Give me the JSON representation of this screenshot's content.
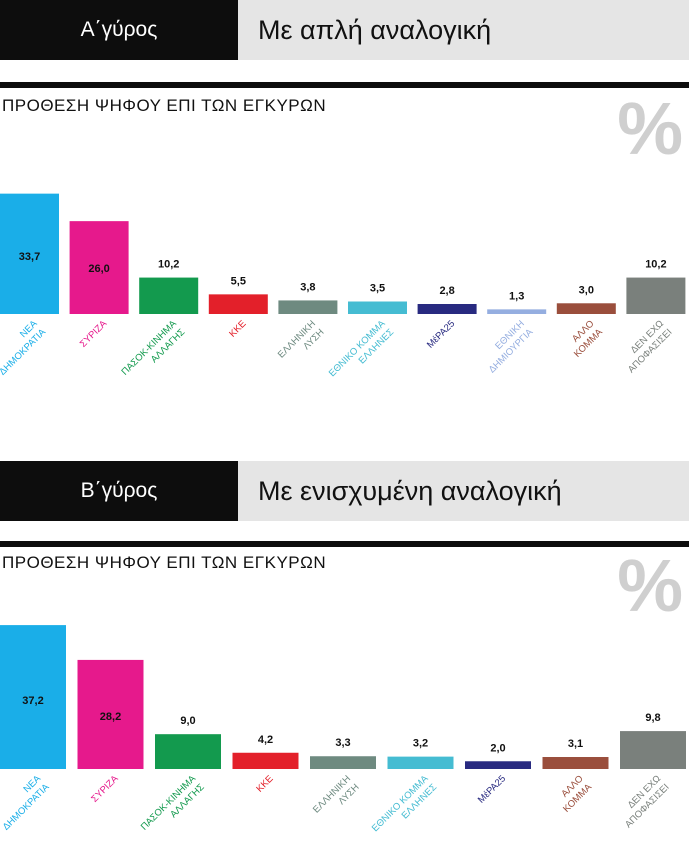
{
  "sections": [
    {
      "round_label": "Α΄γύρος",
      "method_label": "Με απλή αναλογική",
      "subtitle": "ΠΡΟΘΕΣΗ ΨΗΦΟΥ ΕΠΙ ΤΩΝ ΕΓΚΥΡΩΝ",
      "percent_symbol": "%"
    },
    {
      "round_label": "Β΄γύρος",
      "method_label": "Με ενισχυμένη αναλογική",
      "subtitle": "ΠΡΟΘΕΣΗ ΨΗΦΟΥ ΕΠΙ ΤΩΝ ΕΓΚΥΡΩΝ",
      "percent_symbol": "%"
    }
  ],
  "chart_data": [
    {
      "type": "bar",
      "title": "ΠΡΟΘΕΣΗ ΨΗΦΟΥ ΕΠΙ ΤΩΝ ΕΓΚΥΡΩΝ",
      "categories": [
        [
          "ΝΕΑ",
          "ΔΗΜΟΚΡΑΤΙΑ"
        ],
        [
          "ΣΥΡΙΖΑ"
        ],
        [
          "ΠΑΣΟΚ-ΚΙΝΗΜΑ",
          "ΑΛΛΑΓΗΣ"
        ],
        [
          "ΚΚΕ"
        ],
        [
          "ΕΛΛΗΝΙΚΗ",
          "ΛΥΣΗ"
        ],
        [
          "ΕΘΝΙΚΟ ΚΟΜΜΑ",
          "ΕΛΛΗΝΕΣ"
        ],
        [
          "ΜέΡΑ25"
        ],
        [
          "ΕΘΝΙΚΗ",
          "ΔΗΜΙΟΥΡΓΙΑ"
        ],
        [
          "ΑΛΛΟ",
          "ΚΟΜΜΑ"
        ],
        [
          "ΔΕΝ ΕΧΩ",
          "ΑΠΟΦΑΣΙΣΕΙ"
        ]
      ],
      "values": [
        33.7,
        26.0,
        10.2,
        5.5,
        3.8,
        3.5,
        2.8,
        1.3,
        3.0,
        10.2
      ],
      "value_labels": [
        "33,7",
        "26,0",
        "10,2",
        "5,5",
        "3,8",
        "3,5",
        "2,8",
        "1,3",
        "3,0",
        "10,2"
      ],
      "colors": [
        "#1aaee8",
        "#e6198c",
        "#139a4e",
        "#e3202a",
        "#6e8a80",
        "#45bcd2",
        "#282a80",
        "#95aee0",
        "#9a4e3c",
        "#7a807c"
      ],
      "ylim": [
        0,
        35
      ]
    },
    {
      "type": "bar",
      "title": "ΠΡΟΘΕΣΗ ΨΗΦΟΥ ΕΠΙ ΤΩΝ ΕΓΚΥΡΩΝ",
      "categories": [
        [
          "ΝΕΑ",
          "ΔΗΜΟΚΡΑΤΙΑ"
        ],
        [
          "ΣΥΡΙΖΑ"
        ],
        [
          "ΠΑΣΟΚ-ΚΙΝΗΜΑ",
          "ΑΛΛΑΓΗΣ"
        ],
        [
          "ΚΚΕ"
        ],
        [
          "ΕΛΛΗΝΙΚΗ",
          "ΛΥΣΗ"
        ],
        [
          "ΕΘΝΙΚΟ ΚΟΜΜΑ",
          "ΕΛΛΗΝΕΣ"
        ],
        [
          "ΜέΡΑ25"
        ],
        [
          "ΑΛΛΟ",
          "ΚΟΜΜΑ"
        ],
        [
          "ΔΕΝ ΕΧΩ",
          "ΑΠΟΦΑΣΙΣΕΙ"
        ]
      ],
      "values": [
        37.2,
        28.2,
        9.0,
        4.2,
        3.3,
        3.2,
        2.0,
        3.1,
        9.8
      ],
      "value_labels": [
        "37,2",
        "28,2",
        "9,0",
        "4,2",
        "3,3",
        "3,2",
        "2,0",
        "3,1",
        "9,8"
      ],
      "colors": [
        "#1aaee8",
        "#e6198c",
        "#139a4e",
        "#e3202a",
        "#6e8a80",
        "#45bcd2",
        "#282a80",
        "#9a4e3c",
        "#7a807c"
      ],
      "ylim": [
        0,
        38
      ]
    }
  ]
}
